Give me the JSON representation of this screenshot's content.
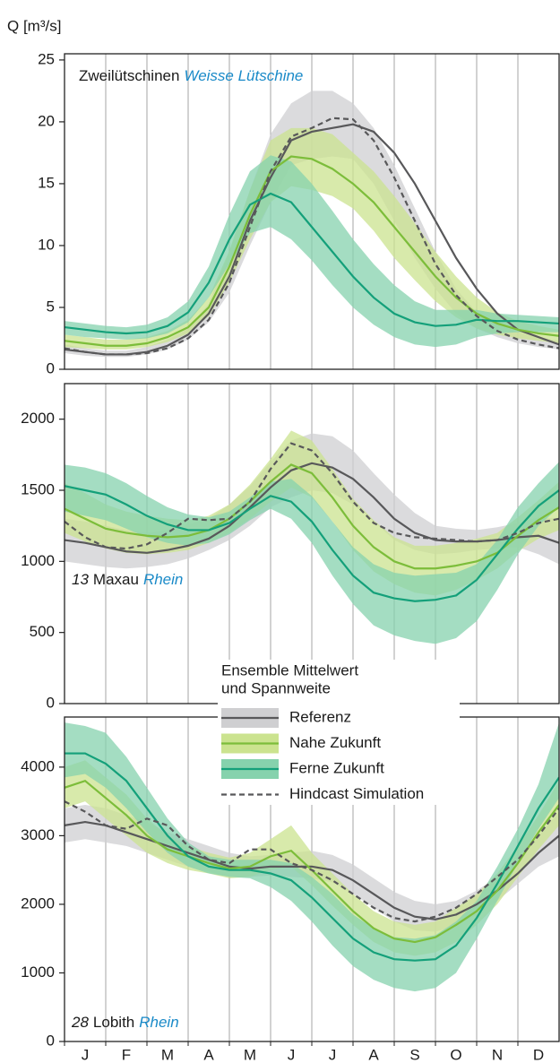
{
  "y_label": "Q [m³/s]",
  "legend": {
    "title": [
      "Ensemble Mittelwert",
      "und Spannweite"
    ],
    "entries": [
      {
        "name": "Referenz",
        "color": "#58585a",
        "band_color": "#cfcfd1",
        "style": "solid"
      },
      {
        "name": "Nahe Zukunft",
        "color": "#7cbd3a",
        "band_color": "#cbe38f",
        "style": "solid"
      },
      {
        "name": "Ferne Zukunft",
        "color": "#14a07a",
        "band_color": "#86d2ad",
        "style": "solid"
      },
      {
        "name": "Hindcast Simulation",
        "color": "#58585a",
        "band_color": null,
        "style": "dashed"
      }
    ]
  },
  "chart_data": [
    {
      "type": "band-line",
      "title": [
        {
          "text": "Zweilütschinen",
          "style": "normal"
        },
        {
          "text": "Weisse Lütschine",
          "style": "river"
        }
      ],
      "x": [
        0,
        0.5,
        1,
        1.5,
        2,
        2.5,
        3,
        3.5,
        4,
        4.5,
        5,
        5.5,
        6,
        6.5,
        7,
        7.5,
        8,
        8.5,
        9,
        9.5,
        10,
        10.5,
        11,
        11.5,
        12
      ],
      "xlim": [
        0,
        12
      ],
      "ylim": [
        0,
        25.5
      ],
      "yticks": [
        0,
        5,
        10,
        15,
        20,
        25
      ],
      "series": [
        {
          "values": [
            1.6,
            1.4,
            1.2,
            1.2,
            1.4,
            1.9,
            2.8,
            4.5,
            7.5,
            12,
            15.5,
            18.5,
            19.2,
            19.5,
            19.8,
            19.2,
            17.5,
            15,
            12,
            9,
            6.5,
            4.5,
            3.2,
            2.6,
            2
          ],
          "low": [
            1.3,
            1.1,
            1,
            1,
            1.2,
            1.6,
            2.4,
            3.8,
            6.2,
            10,
            13.5,
            16.5,
            17,
            17.2,
            17,
            15,
            12,
            9,
            6.5,
            4.5,
            3.3,
            2.6,
            2.1,
            1.8,
            1.6
          ],
          "high": [
            2,
            1.7,
            1.5,
            1.5,
            1.8,
            2.4,
            3.3,
            5.3,
            9.5,
            14.5,
            19,
            21.5,
            22.5,
            22.5,
            21.5,
            19.5,
            16.5,
            13,
            9.5,
            6.5,
            4.6,
            3.6,
            3,
            2.6,
            2.3
          ]
        },
        {
          "values": [
            2.3,
            2.1,
            1.9,
            1.9,
            2.1,
            2.6,
            3.4,
            5,
            8.3,
            12.5,
            16,
            17.2,
            17,
            16.2,
            15,
            13.5,
            11.5,
            9.5,
            7.5,
            5.8,
            4.5,
            3.7,
            3.2,
            2.9,
            2.7
          ],
          "low": [
            1.8,
            1.7,
            1.6,
            1.6,
            1.8,
            2.2,
            2.9,
            4.3,
            7,
            10.5,
            13.5,
            14.8,
            14.5,
            14,
            13,
            11.2,
            9,
            7.2,
            5.5,
            4.2,
            3.3,
            2.8,
            2.5,
            2.3,
            2.1
          ],
          "high": [
            2.8,
            2.6,
            2.4,
            2.4,
            2.6,
            3.1,
            4,
            5.8,
            9.6,
            14.5,
            18.5,
            19.5,
            19.5,
            19,
            17.5,
            16,
            14,
            11.8,
            9.5,
            7.5,
            5.8,
            4.6,
            3.9,
            3.5,
            3.2
          ]
        },
        {
          "values": [
            3.4,
            3.2,
            3,
            2.9,
            3,
            3.5,
            4.6,
            7,
            10.5,
            13.3,
            14.2,
            13.5,
            11.5,
            9.5,
            7.5,
            5.8,
            4.5,
            3.8,
            3.5,
            3.6,
            4,
            3.9,
            3.9,
            3.8,
            3.7
          ],
          "low": [
            2.8,
            2.6,
            2.5,
            2.4,
            2.5,
            2.9,
            3.8,
            5.8,
            8.5,
            11,
            11.5,
            10.5,
            8.8,
            6.8,
            5,
            3.6,
            2.6,
            2,
            1.8,
            2,
            2.6,
            2.9,
            3,
            3,
            3
          ],
          "high": [
            3.9,
            3.7,
            3.5,
            3.4,
            3.6,
            4.2,
            5.5,
            8.3,
            12.5,
            16,
            17.3,
            16.8,
            15,
            12.8,
            10.5,
            8.5,
            6.8,
            5.5,
            4.8,
            4.8,
            4.8,
            4.5,
            4.4,
            4.3,
            4.2
          ]
        },
        {
          "values": [
            1.7,
            1.4,
            1.2,
            1.2,
            1.3,
            1.7,
            2.5,
            4,
            7,
            11.5,
            16,
            18.8,
            19.5,
            20.3,
            20.2,
            18.5,
            15.5,
            12,
            8.5,
            6,
            4.3,
            3.1,
            2.4,
            2,
            1.7
          ]
        }
      ]
    },
    {
      "type": "band-line",
      "title": [
        {
          "text": "13",
          "style": "number"
        },
        {
          "text": "Maxau",
          "style": "normal"
        },
        {
          "text": "Rhein",
          "style": "river"
        }
      ],
      "x": [
        0,
        0.5,
        1,
        1.5,
        2,
        2.5,
        3,
        3.5,
        4,
        4.5,
        5,
        5.5,
        6,
        6.5,
        7,
        7.5,
        8,
        8.5,
        9,
        9.5,
        10,
        10.5,
        11,
        11.5,
        12
      ],
      "xlim": [
        0,
        12
      ],
      "ylim": [
        0,
        2250
      ],
      "yticks": [
        0,
        500,
        1000,
        1500,
        2000
      ],
      "series": [
        {
          "values": [
            1150,
            1130,
            1100,
            1070,
            1060,
            1080,
            1110,
            1160,
            1250,
            1380,
            1520,
            1640,
            1690,
            1660,
            1580,
            1450,
            1300,
            1200,
            1150,
            1140,
            1140,
            1150,
            1170,
            1180,
            1130
          ],
          "low": [
            1000,
            980,
            960,
            950,
            960,
            980,
            1020,
            1080,
            1150,
            1250,
            1380,
            1450,
            1500,
            1480,
            1400,
            1280,
            1150,
            1080,
            1050,
            1060,
            1080,
            1090,
            1100,
            1050,
            980
          ],
          "high": [
            1300,
            1280,
            1250,
            1220,
            1200,
            1220,
            1260,
            1300,
            1400,
            1530,
            1700,
            1850,
            1900,
            1880,
            1780,
            1620,
            1470,
            1340,
            1250,
            1230,
            1220,
            1240,
            1270,
            1310,
            1300
          ]
        },
        {
          "values": [
            1370,
            1300,
            1230,
            1200,
            1180,
            1170,
            1180,
            1220,
            1300,
            1420,
            1560,
            1680,
            1620,
            1450,
            1250,
            1100,
            1000,
            950,
            950,
            970,
            1000,
            1060,
            1180,
            1290,
            1380
          ],
          "low": [
            1200,
            1140,
            1090,
            1060,
            1050,
            1060,
            1080,
            1130,
            1200,
            1300,
            1420,
            1520,
            1450,
            1280,
            1080,
            930,
            840,
            780,
            760,
            800,
            870,
            950,
            1070,
            1160,
            1220
          ],
          "high": [
            1550,
            1480,
            1400,
            1350,
            1320,
            1300,
            1290,
            1320,
            1400,
            1540,
            1720,
            1920,
            1850,
            1650,
            1440,
            1290,
            1170,
            1110,
            1110,
            1130,
            1160,
            1200,
            1310,
            1430,
            1560
          ]
        },
        {
          "values": [
            1530,
            1500,
            1470,
            1400,
            1320,
            1260,
            1220,
            1220,
            1270,
            1370,
            1460,
            1420,
            1280,
            1080,
            900,
            780,
            740,
            720,
            730,
            760,
            870,
            1050,
            1230,
            1390,
            1500
          ],
          "low": [
            1350,
            1320,
            1290,
            1230,
            1170,
            1130,
            1110,
            1130,
            1190,
            1290,
            1370,
            1300,
            1130,
            900,
            700,
            550,
            480,
            440,
            420,
            460,
            580,
            800,
            1050,
            1250,
            1380
          ],
          "high": [
            1680,
            1660,
            1620,
            1550,
            1460,
            1380,
            1330,
            1310,
            1350,
            1450,
            1560,
            1580,
            1460,
            1280,
            1100,
            980,
            920,
            900,
            910,
            920,
            980,
            1150,
            1380,
            1550,
            1700
          ]
        },
        {
          "values": [
            1280,
            1170,
            1100,
            1090,
            1120,
            1200,
            1300,
            1290,
            1300,
            1420,
            1650,
            1830,
            1780,
            1620,
            1420,
            1270,
            1200,
            1170,
            1160,
            1150,
            1140,
            1150,
            1200,
            1270,
            1300
          ]
        }
      ]
    },
    {
      "type": "band-line",
      "title": [
        {
          "text": "28",
          "style": "number"
        },
        {
          "text": "Lobith",
          "style": "normal"
        },
        {
          "text": "Rhein",
          "style": "river"
        }
      ],
      "x": [
        0,
        0.5,
        1,
        1.5,
        2,
        2.5,
        3,
        3.5,
        4,
        4.5,
        5,
        5.5,
        6,
        6.5,
        7,
        7.5,
        8,
        8.5,
        9,
        9.5,
        10,
        10.5,
        11,
        11.5,
        12
      ],
      "xlim": [
        0,
        12
      ],
      "ylim": [
        0,
        4730
      ],
      "yticks": [
        0,
        1000,
        2000,
        3000,
        4000
      ],
      "categories": [
        "J",
        "F",
        "M",
        "A",
        "M",
        "J",
        "J",
        "A",
        "S",
        "O",
        "N",
        "D"
      ],
      "series": [
        {
          "values": [
            3150,
            3200,
            3150,
            3050,
            2950,
            2850,
            2750,
            2650,
            2550,
            2520,
            2550,
            2550,
            2550,
            2500,
            2350,
            2150,
            1950,
            1820,
            1780,
            1850,
            2000,
            2200,
            2450,
            2750,
            3000
          ],
          "low": [
            2900,
            2950,
            2900,
            2850,
            2750,
            2650,
            2550,
            2480,
            2400,
            2400,
            2420,
            2400,
            2380,
            2320,
            2150,
            1950,
            1750,
            1620,
            1600,
            1680,
            1850,
            2050,
            2300,
            2550,
            2700
          ],
          "high": [
            3400,
            3450,
            3400,
            3300,
            3200,
            3050,
            2950,
            2850,
            2750,
            2700,
            2720,
            2750,
            2780,
            2720,
            2580,
            2380,
            2180,
            2050,
            2000,
            2050,
            2200,
            2400,
            2650,
            3000,
            3350
          ]
        },
        {
          "values": [
            3700,
            3800,
            3550,
            3300,
            3000,
            2800,
            2700,
            2600,
            2520,
            2550,
            2700,
            2780,
            2500,
            2200,
            1900,
            1650,
            1500,
            1450,
            1520,
            1700,
            1900,
            2200,
            2600,
            3050,
            3450
          ],
          "low": [
            3400,
            3500,
            3250,
            3000,
            2750,
            2600,
            2500,
            2450,
            2380,
            2400,
            2500,
            2550,
            2280,
            1980,
            1700,
            1450,
            1300,
            1250,
            1300,
            1450,
            1700,
            2000,
            2400,
            2800,
            3150
          ],
          "high": [
            4000,
            4100,
            3850,
            3600,
            3250,
            3000,
            2850,
            2750,
            2680,
            2750,
            2950,
            3150,
            2750,
            2450,
            2150,
            1900,
            1750,
            1700,
            1750,
            1950,
            2150,
            2450,
            2850,
            3300,
            3800
          ]
        },
        {
          "values": [
            4200,
            4200,
            4050,
            3800,
            3400,
            3000,
            2700,
            2550,
            2500,
            2500,
            2450,
            2350,
            2100,
            1800,
            1500,
            1300,
            1200,
            1180,
            1200,
            1400,
            1800,
            2300,
            2850,
            3400,
            3850
          ],
          "low": [
            3850,
            3900,
            3700,
            3400,
            3050,
            2750,
            2550,
            2450,
            2400,
            2380,
            2250,
            2050,
            1750,
            1400,
            1100,
            900,
            780,
            730,
            780,
            1000,
            1500,
            2050,
            2600,
            3100,
            3550
          ],
          "high": [
            4650,
            4600,
            4500,
            4150,
            3700,
            3250,
            2900,
            2700,
            2650,
            2650,
            2650,
            2600,
            2400,
            2150,
            1850,
            1650,
            1520,
            1500,
            1550,
            1750,
            2050,
            2550,
            3100,
            3750,
            4650
          ]
        },
        {
          "values": [
            3500,
            3350,
            3150,
            3100,
            3250,
            3150,
            2850,
            2650,
            2600,
            2800,
            2800,
            2600,
            2500,
            2350,
            2150,
            1950,
            1800,
            1750,
            1820,
            1950,
            2150,
            2400,
            2650,
            3000,
            3400
          ]
        }
      ]
    }
  ]
}
